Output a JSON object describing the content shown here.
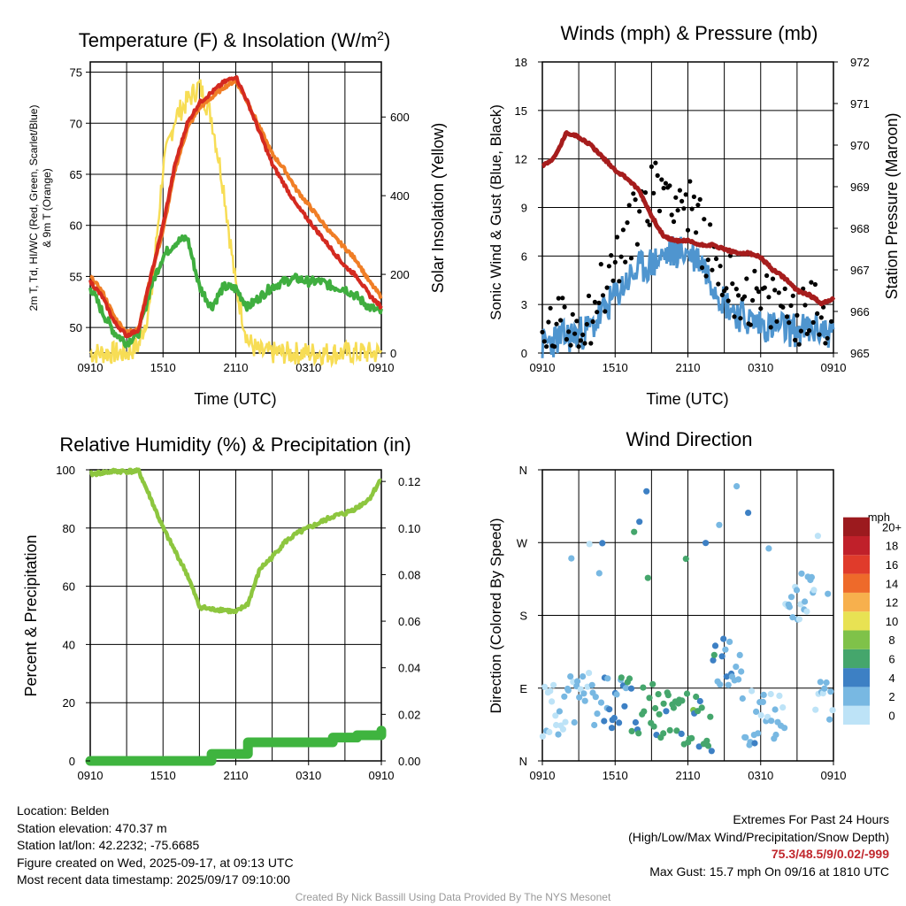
{
  "colors": {
    "temp": "#d42a20",
    "dewpoint": "#3fae3f",
    "hiwc": "#d42a20",
    "t9m": "#f07e26",
    "insolation": "#f7dd55",
    "wind": "#4f95cf",
    "gust": "#000000",
    "pressure": "#a61d1d",
    "rh": "#8dc63f",
    "precip": "#3fb43f"
  },
  "chart_data": [
    {
      "id": "temperature",
      "type": "line",
      "title": "Temperature (F) & Insolation (W/m",
      "title_sup": "2",
      "title_end": ")",
      "xlabel": "Time (UTC)",
      "ylabel_left_line1": "2m T, Td, HI/WC (Red, Green, Scarlet/Blue)",
      "ylabel_left_line2": "& 9m T (Orange)",
      "ylabel_right": "Solar Insolation (Yellow)",
      "x_ticks": [
        "0910",
        "1510",
        "2110",
        "0310",
        "0910"
      ],
      "ylim": [
        47.5,
        76
      ],
      "y_ticks": [
        50,
        55,
        60,
        65,
        70,
        75
      ],
      "ylim_right": [
        0,
        740
      ],
      "y_ticks_right": [
        0,
        200,
        400,
        600
      ],
      "hours": [
        0,
        1,
        2,
        3,
        4,
        5,
        6,
        7,
        8,
        9,
        10,
        11,
        12,
        13,
        14,
        15,
        16,
        17,
        18,
        19,
        20,
        21,
        22,
        23,
        24
      ],
      "series": [
        {
          "name": "2m T",
          "values": [
            54.5,
            53,
            50.5,
            49.2,
            49.8,
            55,
            60,
            66,
            70,
            72,
            73,
            74,
            74.6,
            72,
            69,
            66,
            64,
            62,
            60.5,
            59,
            57.5,
            56,
            55,
            53.2,
            52
          ]
        },
        {
          "name": "9m T",
          "values": [
            55,
            53.5,
            51,
            49.5,
            50,
            55,
            59.5,
            65.5,
            69.5,
            71.5,
            72.5,
            73.5,
            74.2,
            72,
            69.5,
            67,
            65.5,
            63.5,
            62,
            60.5,
            59,
            57.8,
            56.5,
            54.5,
            53
          ]
        },
        {
          "name": "2m Td",
          "values": [
            54,
            51.5,
            49.5,
            48.5,
            49.5,
            54,
            57,
            58.3,
            58.8,
            54,
            52,
            54,
            53.8,
            52,
            53,
            54,
            54.5,
            54.8,
            54.5,
            54.5,
            54,
            53.8,
            53,
            52,
            51.5
          ]
        },
        {
          "name": "Insolation",
          "values": [
            0,
            0,
            0,
            0,
            20,
            130,
            470,
            600,
            640,
            680,
            600,
            420,
            170,
            30,
            0,
            0,
            0,
            0,
            0,
            0,
            0,
            0,
            0,
            0,
            0
          ]
        }
      ]
    },
    {
      "id": "winds",
      "type": "line",
      "title": "Winds (mph) & Pressure (mb)",
      "xlabel": "Time (UTC)",
      "ylabel_left": "Sonic Wind & Gust (Blue, Black)",
      "ylabel_right": "Station Pressure (Maroon)",
      "x_ticks": [
        "0910",
        "1510",
        "2110",
        "0310",
        "0910"
      ],
      "ylim": [
        0,
        18
      ],
      "y_ticks": [
        0,
        3,
        6,
        9,
        12,
        15,
        18
      ],
      "ylim_right": [
        965,
        972
      ],
      "y_ticks_right": [
        965,
        966,
        967,
        968,
        969,
        970,
        971,
        972
      ],
      "hours": [
        0,
        1,
        2,
        3,
        4,
        5,
        6,
        7,
        8,
        9,
        10,
        11,
        12,
        13,
        14,
        15,
        16,
        17,
        18,
        19,
        20,
        21,
        22,
        23,
        24
      ],
      "series": [
        {
          "name": "Sonic Wind",
          "values": [
            0.5,
            0.8,
            1,
            1.2,
            1.5,
            2.5,
            3.5,
            4.5,
            5.2,
            5.5,
            6,
            6.3,
            6.2,
            5.8,
            4.5,
            3.2,
            2.5,
            2,
            1.8,
            1.6,
            1.5,
            1.4,
            1.4,
            1.5,
            1.2
          ]
        },
        {
          "name": "Gust",
          "values": [
            1,
            1.5,
            1.8,
            2,
            2.5,
            4,
            5.5,
            7,
            9,
            10,
            10.5,
            10,
            9,
            7.5,
            6,
            4.5,
            4,
            3.5,
            3,
            3,
            2.8,
            2.5,
            2.5,
            2.5,
            2.5
          ]
        },
        {
          "name": "Station Pressure",
          "values": [
            969.5,
            969.7,
            970.3,
            970.2,
            970,
            969.7,
            969.4,
            969.2,
            968.9,
            968.3,
            967.8,
            967.7,
            967.7,
            967.6,
            967.6,
            967.5,
            967.4,
            967.4,
            967.3,
            967,
            966.8,
            966.5,
            966.4,
            966.2,
            966.3
          ]
        }
      ]
    },
    {
      "id": "humidity",
      "type": "line",
      "title": "Relative Humidity (%) & Precipitation (in)",
      "ylabel_left": "Percent & Precipitation",
      "x_ticks": [
        "0910",
        "1510",
        "2110",
        "0310",
        "0910"
      ],
      "ylim": [
        0,
        100
      ],
      "y_ticks": [
        0,
        20,
        40,
        60,
        80,
        100
      ],
      "ylim_right": [
        0,
        0.125
      ],
      "y_ticks_right": [
        "0.00",
        "0.02",
        "0.04",
        "0.06",
        "0.08",
        "0.10",
        "0.12"
      ],
      "hours": [
        0,
        1,
        2,
        3,
        4,
        5,
        6,
        7,
        8,
        9,
        10,
        11,
        12,
        13,
        14,
        15,
        16,
        17,
        18,
        19,
        20,
        21,
        22,
        23,
        24
      ],
      "series": [
        {
          "name": "Relative Humidity",
          "values": [
            98.5,
            99,
            99.5,
            99.5,
            99.5,
            90,
            80,
            72,
            64,
            53,
            52,
            52,
            51,
            54,
            66,
            70,
            75,
            78,
            80,
            82,
            84,
            85,
            87,
            90,
            97
          ]
        },
        {
          "name": "Precipitation",
          "values": [
            0,
            0,
            0,
            0,
            0,
            0,
            0,
            0,
            0,
            0,
            0.003,
            0.003,
            0.003,
            0.008,
            0.008,
            0.008,
            0.008,
            0.008,
            0.008,
            0.008,
            0.01,
            0.01,
            0.011,
            0.011,
            0.013
          ]
        }
      ]
    },
    {
      "id": "direction",
      "type": "scatter",
      "title": "Wind Direction",
      "ylabel_left": "Direction (Colored By Speed)",
      "x_ticks": [
        "0910",
        "1510",
        "2110",
        "0310",
        "0910"
      ],
      "y_ticks": [
        "N",
        "E",
        "S",
        "W",
        "N"
      ],
      "ylim": [
        0,
        360
      ],
      "legend_title": "mph",
      "legend_labels": [
        "0",
        "2",
        "4",
        "6",
        "8",
        "10",
        "12",
        "14",
        "16",
        "18",
        "20+"
      ],
      "legend_colors": [
        "#bde3f7",
        "#78b8e2",
        "#3d80c4",
        "#45a66c",
        "#7fc249",
        "#e8e253",
        "#f7b04d",
        "#ee6a2a",
        "#e03b2b",
        "#c0202a",
        "#9c1a1e"
      ]
    }
  ],
  "info": {
    "location": "Location: Belden",
    "elevation": "Station elevation: 470.37 m",
    "latlon": "Station lat/lon: 42.2232; -75.6685",
    "created": "Figure created on Wed, 2025-09-17, at 09:13 UTC",
    "recent": "Most recent data timestamp: 2025/09/17 09:10:00",
    "extremes_title": "Extremes For Past 24 Hours",
    "extremes_sub": "(High/Low/Max Wind/Precipitation/Snow Depth)",
    "extremes_values": "75.3/48.5/9/0.02/-999",
    "max_gust": "Max Gust: 15.7 mph On 09/16 at 1810 UTC",
    "credit": "Created By Nick Bassill Using Data Provided By The NYS Mesonet"
  }
}
